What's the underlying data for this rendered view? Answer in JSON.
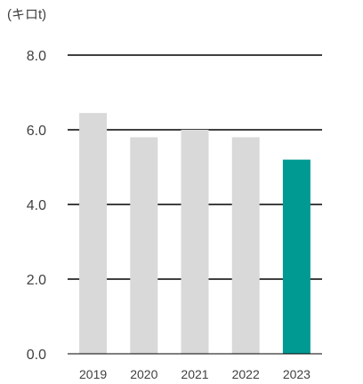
{
  "chart_data": {
    "type": "bar",
    "unit_label": "(キロt)",
    "categories": [
      "2019",
      "2020",
      "2021",
      "2022",
      "2023"
    ],
    "values": [
      6.45,
      5.8,
      6.0,
      5.8,
      5.2
    ],
    "ylim": [
      0,
      8
    ],
    "yticks": [
      "0.0",
      "2.0",
      "4.0",
      "6.0",
      "8.0"
    ],
    "ytick_values": [
      0,
      2,
      4,
      6,
      8
    ],
    "grid": true,
    "colors": {
      "default_bar": "#d9d9d9",
      "highlight_bar": "#009a93",
      "gridline": "#000000"
    },
    "highlight_index": 4
  }
}
